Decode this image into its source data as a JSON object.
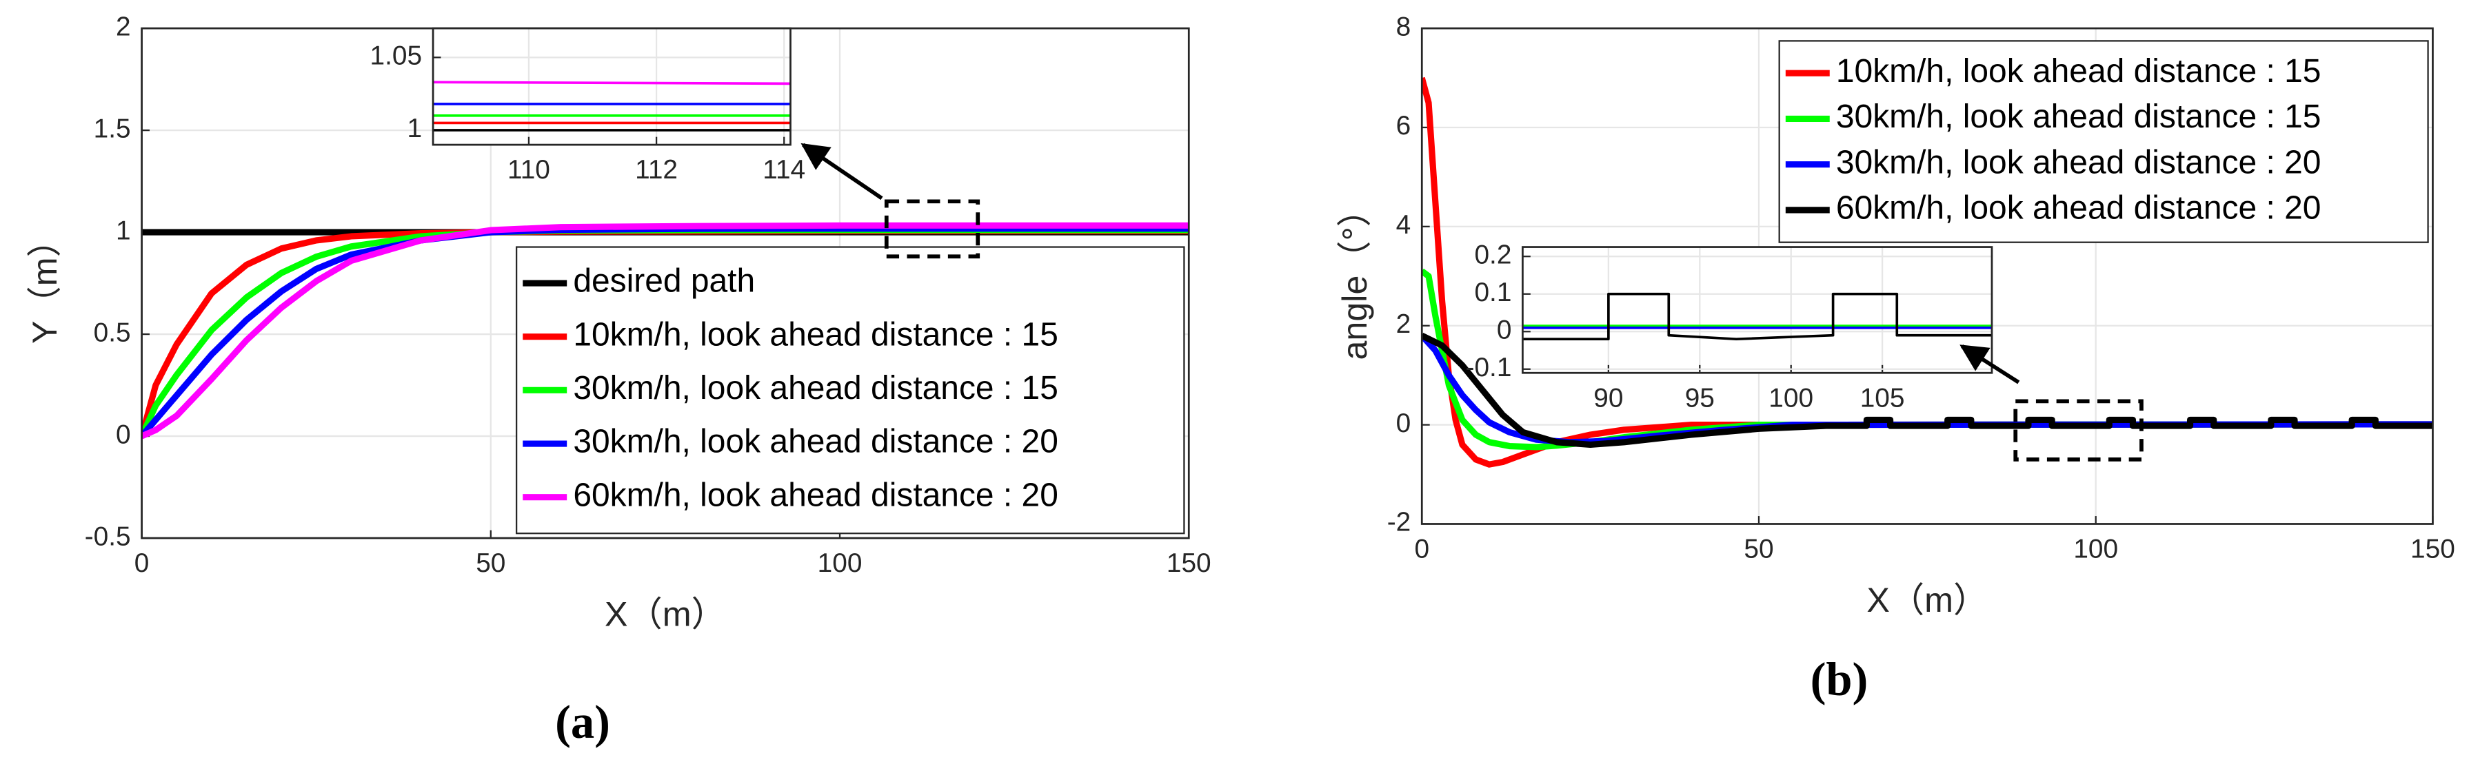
{
  "chart_data": [
    {
      "type": "line",
      "label": "(a)",
      "xlabel": "X（m）",
      "ylabel": "Y（m）",
      "xlim": [
        0,
        150
      ],
      "ylim": [
        -0.5,
        2
      ],
      "xticks": [
        0,
        50,
        100,
        150
      ],
      "yticks": [
        -0.5,
        0,
        0.5,
        1,
        1.5,
        2
      ],
      "grid": true,
      "legend": "lower right",
      "series": [
        {
          "name": "desired path",
          "color": "#000000",
          "x": [
            0,
            150
          ],
          "values": [
            1,
            1
          ]
        },
        {
          "name": "10km/h, look ahead distance : 15",
          "color": "#ff0000",
          "x": [
            0,
            2,
            5,
            10,
            15,
            20,
            25,
            30,
            40,
            50,
            60,
            80,
            100,
            120,
            150
          ],
          "values": [
            0,
            0.25,
            0.45,
            0.7,
            0.84,
            0.92,
            0.96,
            0.98,
            0.995,
            1.0,
            1.003,
            1.004,
            1.005,
            1.005,
            1.005
          ]
        },
        {
          "name": "30km/h, look ahead distance : 15",
          "color": "#00ff00",
          "x": [
            0,
            2,
            5,
            10,
            15,
            20,
            25,
            30,
            40,
            50,
            60,
            80,
            100,
            120,
            150
          ],
          "values": [
            0,
            0.15,
            0.3,
            0.52,
            0.68,
            0.8,
            0.88,
            0.93,
            0.98,
            1.0,
            1.008,
            1.01,
            1.01,
            1.01,
            1.01
          ]
        },
        {
          "name": "30km/h, look ahead distance : 20",
          "color": "#0000ff",
          "x": [
            0,
            2,
            5,
            10,
            15,
            20,
            25,
            30,
            40,
            50,
            60,
            80,
            100,
            120,
            150
          ],
          "values": [
            0,
            0.08,
            0.2,
            0.4,
            0.57,
            0.71,
            0.82,
            0.89,
            0.96,
            1.0,
            1.012,
            1.017,
            1.018,
            1.018,
            1.018
          ]
        },
        {
          "name": "60km/h, look ahead distance : 20",
          "color": "#ff00ff",
          "x": [
            0,
            2,
            5,
            10,
            15,
            20,
            25,
            30,
            40,
            50,
            60,
            80,
            100,
            120,
            150
          ],
          "values": [
            0,
            0.03,
            0.1,
            0.28,
            0.47,
            0.63,
            0.76,
            0.86,
            0.96,
            1.01,
            1.025,
            1.03,
            1.033,
            1.033,
            1.033
          ]
        }
      ]
    },
    {
      "type": "line",
      "xlim": [
        108.5,
        114.1
      ],
      "ylim": [
        0.99,
        1.07
      ],
      "xticks": [
        110,
        112,
        114
      ],
      "yticks": [
        1,
        1.05
      ],
      "grid": true,
      "series": [
        {
          "color": "#000000",
          "x": [
            108.5,
            114.1
          ],
          "values": [
            1.0,
            1.0
          ]
        },
        {
          "color": "#ff0000",
          "x": [
            108.5,
            114.1
          ],
          "values": [
            1.005,
            1.005
          ]
        },
        {
          "color": "#00ff00",
          "x": [
            108.5,
            114.1
          ],
          "values": [
            1.01,
            1.01
          ]
        },
        {
          "color": "#0000ff",
          "x": [
            108.5,
            114.1
          ],
          "values": [
            1.018,
            1.018
          ]
        },
        {
          "color": "#ff00ff",
          "x": [
            108.5,
            114.1
          ],
          "values": [
            1.033,
            1.032
          ]
        }
      ]
    },
    {
      "type": "line",
      "label": "(b)",
      "xlabel": "X（m）",
      "ylabel": "angle（°）",
      "xlim": [
        0,
        150
      ],
      "ylim": [
        -2,
        8
      ],
      "xticks": [
        0,
        50,
        100,
        150
      ],
      "yticks": [
        -2,
        0,
        2,
        4,
        6,
        8
      ],
      "grid": true,
      "legend": "upper right",
      "series": [
        {
          "name": "10km/h, look ahead distance : 15",
          "color": "#ff0000",
          "x": [
            0,
            1,
            2,
            3,
            4,
            5,
            6,
            8,
            10,
            12,
            15,
            20,
            25,
            30,
            40,
            50,
            150
          ],
          "values": [
            7,
            6.5,
            4.5,
            2.5,
            1,
            0.1,
            -0.4,
            -0.7,
            -0.8,
            -0.75,
            -0.6,
            -0.35,
            -0.2,
            -0.1,
            0,
            0,
            0.01
          ]
        },
        {
          "name": "30km/h, look ahead distance : 15",
          "color": "#00ff00",
          "x": [
            0,
            1,
            2,
            4,
            6,
            8,
            10,
            13,
            17,
            20,
            25,
            30,
            40,
            50,
            150
          ],
          "values": [
            3.1,
            3.0,
            2.2,
            0.8,
            0.1,
            -0.2,
            -0.35,
            -0.43,
            -0.45,
            -0.42,
            -0.35,
            -0.25,
            -0.1,
            0,
            0.01
          ]
        },
        {
          "name": "30km/h, look ahead distance : 20",
          "color": "#0000ff",
          "x": [
            0,
            2,
            4,
            6,
            8,
            10,
            13,
            17,
            22,
            27,
            35,
            45,
            55,
            150
          ],
          "values": [
            1.8,
            1.5,
            1.0,
            0.6,
            0.3,
            0.05,
            -0.15,
            -0.3,
            -0.35,
            -0.33,
            -0.22,
            -0.1,
            0,
            0.01
          ]
        },
        {
          "name": "60km/h, look ahead distance : 20",
          "color": "#000000",
          "x": [
            0,
            3,
            6,
            9,
            12,
            15,
            20,
            25,
            30,
            40,
            50,
            60,
            66,
            66,
            69.5,
            69.5,
            78,
            78,
            81.5,
            81.5,
            90,
            90,
            93.5,
            93.5,
            102,
            102,
            105.5,
            105.5,
            114,
            114,
            117.5,
            117.5,
            126,
            126,
            129.5,
            129.5,
            138,
            138,
            141.5,
            141.5,
            150
          ],
          "values": [
            1.8,
            1.6,
            1.2,
            0.7,
            0.2,
            -0.15,
            -0.35,
            -0.4,
            -0.35,
            -0.2,
            -0.08,
            -0.02,
            -0.02,
            0.1,
            0.1,
            -0.02,
            -0.02,
            0.1,
            0.1,
            -0.02,
            -0.02,
            0.1,
            0.1,
            -0.02,
            -0.02,
            0.1,
            0.1,
            -0.02,
            -0.02,
            0.1,
            0.1,
            -0.02,
            -0.02,
            0.1,
            0.1,
            -0.02,
            -0.02,
            0.1,
            0.1,
            -0.02,
            -0.02
          ]
        }
      ]
    },
    {
      "type": "line",
      "xlim": [
        85.3,
        111
      ],
      "ylim": [
        -0.11,
        0.225
      ],
      "xticks": [
        90,
        95,
        100,
        105
      ],
      "yticks": [
        -0.1,
        0,
        0.1,
        0.2
      ],
      "grid": true,
      "series": [
        {
          "color": "#00ff00",
          "x": [
            85.3,
            111
          ],
          "values": [
            0.015,
            0.015
          ]
        },
        {
          "color": "#0000ff",
          "x": [
            85.3,
            111
          ],
          "values": [
            0.01,
            0.01
          ]
        },
        {
          "color": "#000000",
          "x": [
            85.3,
            90,
            90,
            93.3,
            93.3,
            97,
            102.3,
            102.3,
            105.8,
            105.8,
            111
          ],
          "values": [
            -0.02,
            -0.02,
            0.1,
            0.1,
            -0.01,
            -0.02,
            -0.01,
            0.1,
            0.1,
            -0.01,
            -0.01
          ]
        }
      ]
    }
  ]
}
